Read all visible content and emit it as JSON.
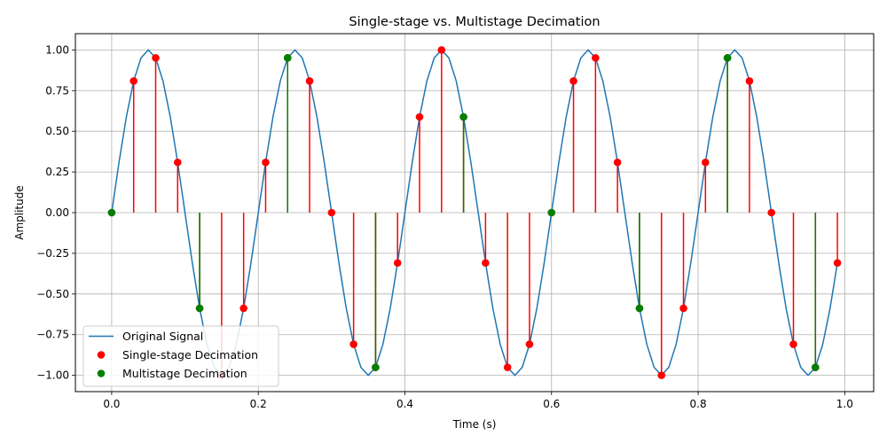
{
  "chart_data": {
    "type": "line",
    "title": "Single-stage vs. Multistage Decimation",
    "xlabel": "Time (s)",
    "ylabel": "Amplitude",
    "xlim": [
      -0.0495,
      1.0395
    ],
    "ylim": [
      -1.1,
      1.1
    ],
    "xticks": [
      0.0,
      0.2,
      0.4,
      0.6,
      0.8,
      1.0
    ],
    "xtick_labels": [
      "0.0",
      "0.2",
      "0.4",
      "0.6",
      "0.8",
      "1.0"
    ],
    "yticks": [
      -1.0,
      -0.75,
      -0.5,
      -0.25,
      0.0,
      0.25,
      0.5,
      0.75,
      1.0
    ],
    "ytick_labels": [
      "−1.00",
      "−0.75",
      "−0.50",
      "−0.25",
      "0.00",
      "0.25",
      "0.50",
      "0.75",
      "1.00"
    ],
    "grid": true,
    "legend_position": "lower-left",
    "series": [
      {
        "name": "Original Signal",
        "kind": "line",
        "color": "#1f77b4",
        "x": [
          0.0,
          0.01,
          0.02,
          0.03,
          0.04,
          0.05,
          0.06,
          0.07,
          0.08,
          0.09,
          0.1,
          0.11,
          0.12,
          0.13,
          0.14,
          0.15,
          0.16,
          0.17,
          0.18,
          0.19,
          0.2,
          0.21,
          0.22,
          0.23,
          0.24,
          0.25,
          0.26,
          0.27,
          0.28,
          0.29,
          0.3,
          0.31,
          0.32,
          0.33,
          0.34,
          0.35,
          0.36,
          0.37,
          0.38,
          0.39,
          0.4,
          0.41,
          0.42,
          0.43,
          0.44,
          0.45,
          0.46,
          0.47,
          0.48,
          0.49,
          0.5,
          0.51,
          0.52,
          0.53,
          0.54,
          0.55,
          0.56,
          0.57,
          0.58,
          0.59,
          0.6,
          0.61,
          0.62,
          0.63,
          0.64,
          0.65,
          0.66,
          0.67,
          0.68,
          0.69,
          0.7,
          0.71,
          0.72,
          0.73,
          0.74,
          0.75,
          0.76,
          0.77,
          0.78,
          0.79,
          0.8,
          0.81,
          0.82,
          0.83,
          0.84,
          0.85,
          0.86,
          0.87,
          0.88,
          0.89,
          0.9,
          0.91,
          0.92,
          0.93,
          0.94,
          0.95,
          0.96,
          0.97,
          0.98,
          0.99
        ],
        "y": [
          0.0,
          0.309,
          0.588,
          0.809,
          0.951,
          1.0,
          0.951,
          0.809,
          0.588,
          0.309,
          0.0,
          -0.309,
          -0.588,
          -0.809,
          -0.951,
          -1.0,
          -0.951,
          -0.809,
          -0.588,
          -0.309,
          0.0,
          0.309,
          0.588,
          0.809,
          0.951,
          1.0,
          0.951,
          0.809,
          0.588,
          0.309,
          0.0,
          -0.309,
          -0.588,
          -0.809,
          -0.951,
          -1.0,
          -0.951,
          -0.809,
          -0.588,
          -0.309,
          0.0,
          0.309,
          0.588,
          0.809,
          0.951,
          1.0,
          0.951,
          0.809,
          0.588,
          0.309,
          0.0,
          -0.309,
          -0.588,
          -0.809,
          -0.951,
          -1.0,
          -0.951,
          -0.809,
          -0.588,
          -0.309,
          0.0,
          0.309,
          0.588,
          0.809,
          0.951,
          1.0,
          0.951,
          0.809,
          0.588,
          0.309,
          0.0,
          -0.309,
          -0.588,
          -0.809,
          -0.951,
          -1.0,
          -0.951,
          -0.809,
          -0.588,
          -0.309,
          0.0,
          0.309,
          0.588,
          0.809,
          0.951,
          1.0,
          0.951,
          0.809,
          0.588,
          0.309,
          0.0,
          -0.309,
          -0.588,
          -0.809,
          -0.951,
          -1.0,
          -0.951,
          -0.809,
          -0.588,
          -0.309
        ]
      },
      {
        "name": "Single-stage Decimation",
        "kind": "stem",
        "color": "#ff0000",
        "x": [
          0.0,
          0.03,
          0.06,
          0.09,
          0.12,
          0.15,
          0.18,
          0.21,
          0.24,
          0.27,
          0.3,
          0.33,
          0.36,
          0.39,
          0.42,
          0.45,
          0.48,
          0.51,
          0.54,
          0.57,
          0.6,
          0.63,
          0.66,
          0.69,
          0.72,
          0.75,
          0.78,
          0.81,
          0.84,
          0.87,
          0.9,
          0.93,
          0.96,
          0.99
        ],
        "y": [
          0.0,
          0.809,
          0.951,
          0.309,
          -0.588,
          -1.0,
          -0.588,
          0.309,
          0.951,
          0.809,
          0.0,
          -0.809,
          -0.951,
          -0.309,
          0.588,
          1.0,
          0.588,
          -0.309,
          -0.951,
          -0.809,
          0.0,
          0.809,
          0.951,
          0.309,
          -0.588,
          -1.0,
          -0.588,
          0.309,
          0.951,
          0.809,
          0.0,
          -0.809,
          -0.951,
          -0.309
        ]
      },
      {
        "name": "Multistage Decimation",
        "kind": "stem",
        "color": "#008000",
        "x": [
          0.0,
          0.12,
          0.24,
          0.36,
          0.48,
          0.6,
          0.72,
          0.84,
          0.96
        ],
        "y": [
          0.0,
          -0.588,
          0.951,
          -0.951,
          0.588,
          0.0,
          -0.588,
          0.951,
          -0.951
        ]
      }
    ]
  }
}
